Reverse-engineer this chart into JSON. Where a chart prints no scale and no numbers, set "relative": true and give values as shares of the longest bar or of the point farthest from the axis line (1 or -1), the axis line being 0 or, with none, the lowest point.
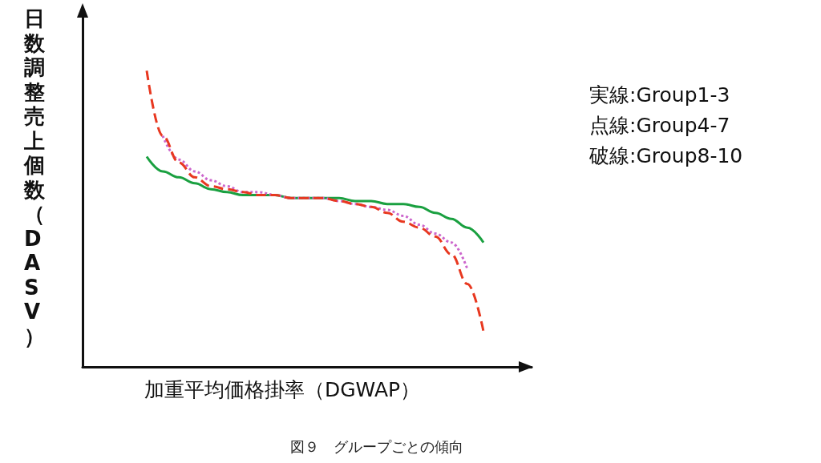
{
  "chart_data": {
    "type": "line",
    "relative": true,
    "title": "図９　グループごとの傾向",
    "xlabel": "加重平均価格掛率（DGWAP）",
    "ylabel": "日数調整売上個数（DASV）",
    "categories": [
      null,
      null,
      null,
      null,
      null,
      null,
      null,
      null,
      null,
      null,
      null,
      null,
      null,
      null,
      null,
      null,
      null,
      null,
      null,
      null,
      null,
      null,
      null,
      null,
      null,
      null,
      null,
      null,
      null
    ],
    "series": [
      {
        "color": "#1aa040",
        "line_style": "solid",
        "values": [
          null,
          null,
          null,
          null,
          0.71,
          0.66,
          0.64,
          0.62,
          0.6,
          0.59,
          0.58,
          0.58,
          0.58,
          0.57,
          0.57,
          0.57,
          0.57,
          0.56,
          0.56,
          0.55,
          0.55,
          0.54,
          0.52,
          0.5,
          0.47,
          0.42,
          null,
          null,
          null
        ]
      },
      {
        "color": "#cc66cc",
        "line_style": "dotted",
        "values": [
          null,
          null,
          null,
          null,
          null,
          0.78,
          0.7,
          0.66,
          0.63,
          0.61,
          0.59,
          0.59,
          0.58,
          0.57,
          0.57,
          0.57,
          0.56,
          0.55,
          0.54,
          0.53,
          0.51,
          0.48,
          0.45,
          0.42,
          0.33,
          null,
          null,
          null,
          null
        ]
      },
      {
        "color": "#e83820",
        "line_style": "dashed",
        "values": [
          null,
          null,
          null,
          null,
          1.0,
          0.78,
          0.69,
          0.64,
          0.61,
          0.6,
          0.59,
          0.58,
          0.58,
          0.57,
          0.57,
          0.57,
          0.56,
          0.55,
          0.54,
          0.52,
          0.49,
          0.47,
          0.44,
          0.38,
          0.28,
          0.12,
          null,
          null,
          null
        ]
      }
    ],
    "annotations": [
      "実線:Group1-3",
      "点線:Group4-7",
      "破線:Group8-10"
    ],
    "marker": "none",
    "grid": false
  }
}
